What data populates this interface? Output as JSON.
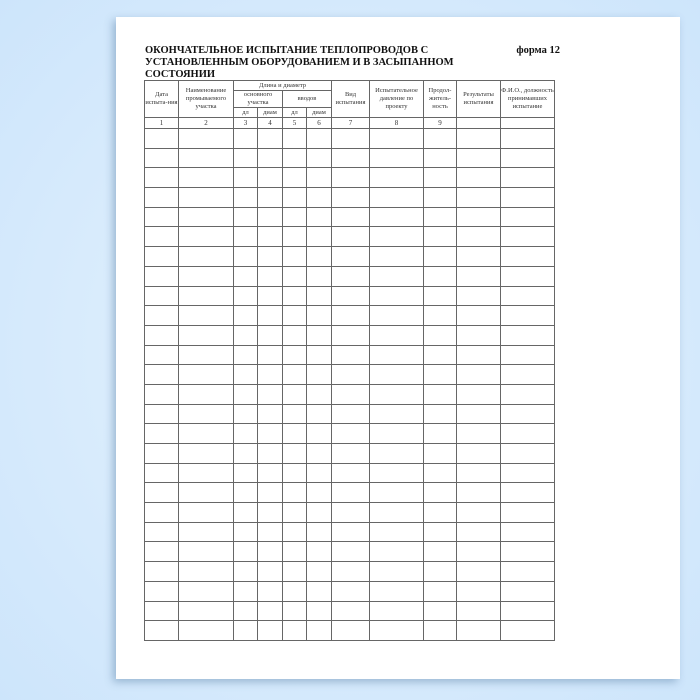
{
  "document": {
    "title": "ОКОНЧАТЕЛЬНОЕ ИСПЫТАНИЕ ТЕПЛОПРОВОДОВ С УСТАНОВЛЕННЫМ ОБОРУДОВАНИЕМ И В ЗАСЫПАННОМ СОСТОЯНИИ",
    "form_label": "форма 12",
    "headers": {
      "date": "Дата испыта-ния",
      "section_name": "Наименование промываемого участка",
      "length_diameter": "Длина и диаметр",
      "main_section": "основного участка",
      "inlets": "вводов",
      "len1": "дл",
      "diam1": "диам",
      "len2": "дл",
      "diam2": "диам",
      "test_type": "Вид испытания",
      "test_pressure": "Испытательное давление по проекту",
      "duration": "Продол-житель-ность",
      "results": "Результаты испытания",
      "persons": "Ф.И.О., должность принимавших испытание"
    },
    "column_numbers": [
      "1",
      "2",
      "3",
      "4",
      "5",
      "6",
      "7",
      "8",
      "9",
      "",
      ""
    ],
    "empty_rows": 26
  }
}
